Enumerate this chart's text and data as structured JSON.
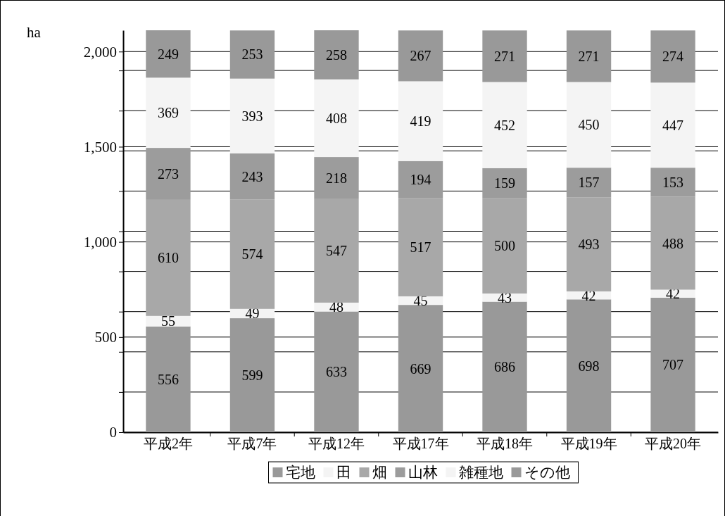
{
  "chart_data": {
    "type": "bar",
    "stacked": true,
    "ylabel": "ha",
    "categories": [
      "平成2年",
      "平成7年",
      "平成12年",
      "平成17年",
      "平成18年",
      "平成19年",
      "平成20年"
    ],
    "series": [
      {
        "name": "宅地",
        "color": "#999999",
        "values": [
          556,
          599,
          633,
          669,
          686,
          698,
          707
        ]
      },
      {
        "name": "田",
        "color": "#f4f4f4",
        "values": [
          55,
          49,
          48,
          45,
          43,
          42,
          42
        ]
      },
      {
        "name": "畑",
        "color": "#a8a8a8",
        "values": [
          610,
          574,
          547,
          517,
          500,
          493,
          488
        ]
      },
      {
        "name": "山林",
        "color": "#9c9c9c",
        "values": [
          273,
          243,
          218,
          194,
          159,
          157,
          153
        ]
      },
      {
        "name": "雑種地",
        "color": "#f4f4f4",
        "values": [
          369,
          393,
          408,
          419,
          452,
          450,
          447
        ]
      },
      {
        "name": "その他",
        "color": "#999999",
        "values": [
          249,
          253,
          258,
          267,
          271,
          271,
          274
        ]
      }
    ],
    "ylim": [
      0,
      2112
    ],
    "yticks": [
      0,
      {
        "value": 211.2,
        "label": null
      },
      {
        "value": 422.4,
        "label": null
      },
      500,
      {
        "value": 633.6,
        "label": null
      },
      {
        "value": 844.8,
        "label": null
      },
      {
        "value": 1000,
        "label": "1,000"
      },
      {
        "value": 1056,
        "label": null
      },
      {
        "value": 1267.2,
        "label": null
      },
      {
        "value": 1478.4,
        "label": null
      },
      {
        "value": 1500,
        "label": "1,500"
      },
      {
        "value": 1689.6,
        "label": null
      },
      {
        "value": 1900.8,
        "label": null
      },
      {
        "value": 2000,
        "label": "2,000"
      }
    ],
    "grid": "y",
    "data_labels": true,
    "legend": "bottom"
  }
}
